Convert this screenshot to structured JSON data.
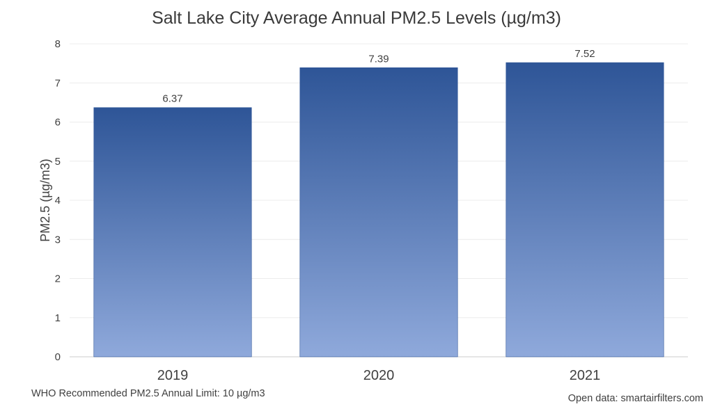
{
  "chart_data": {
    "type": "bar",
    "title": "Salt Lake City Average Annual PM2.5 Levels (µg/m3)",
    "xlabel": "",
    "ylabel": "PM2.5 (µg/m3)",
    "categories": [
      "2019",
      "2020",
      "2021"
    ],
    "values": [
      6.37,
      7.39,
      7.52
    ],
    "data_labels": [
      "6.37",
      "7.39",
      "7.52"
    ],
    "ylim": [
      0,
      8
    ],
    "yticks": [
      0,
      1,
      2,
      3,
      4,
      5,
      6,
      7,
      8
    ],
    "grid": true,
    "legend": "none",
    "bar_gradient": {
      "top": "#2e5597",
      "bottom": "#8fa9db"
    }
  },
  "footnote": "WHO Recommended PM2.5 Annual Limit: 10 µg/m3",
  "source": "Open data: smartairfilters.com"
}
